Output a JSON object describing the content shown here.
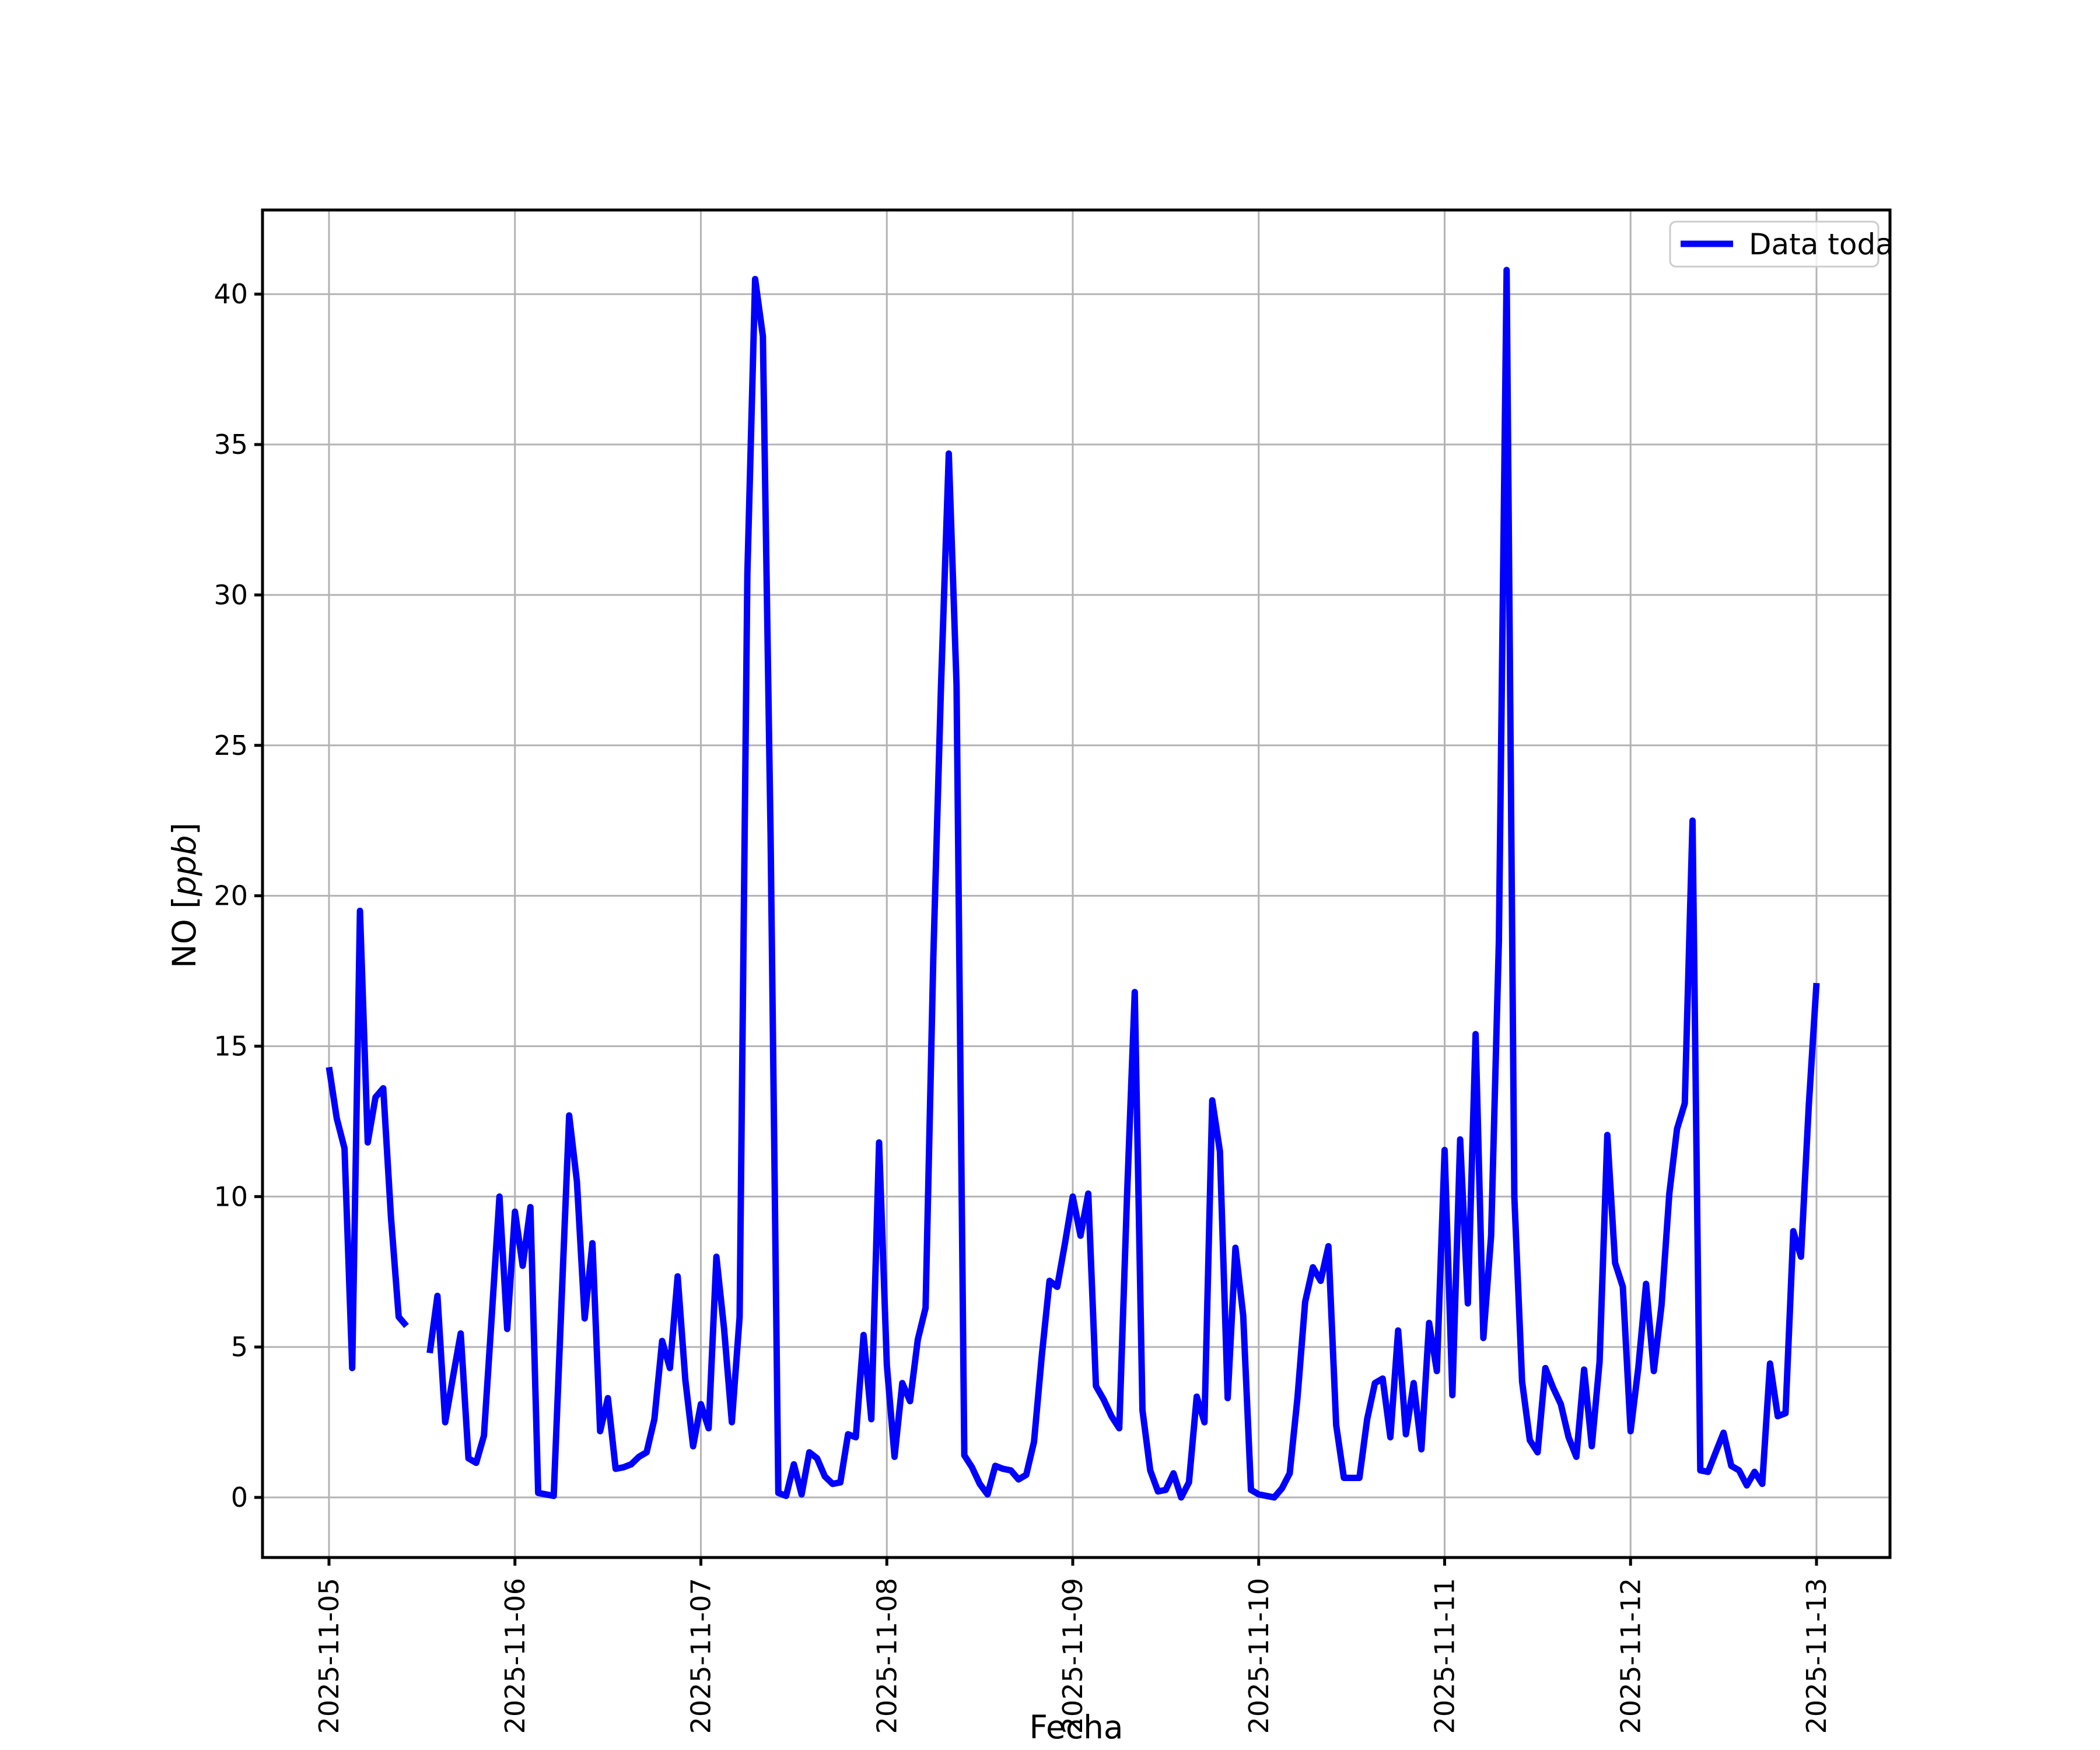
{
  "chart_data": {
    "type": "line",
    "title": "",
    "xlabel": "Fecha",
    "ylabel": "NO [ppb]",
    "ylabel_parts": {
      "prefix": "NO [",
      "italic": "ppb",
      "suffix": "]"
    },
    "legend": {
      "label": "Data toda",
      "position": "upper right"
    },
    "line_color": "#0000ff",
    "grid": true,
    "grid_color": "#b3b3b3",
    "background_color": "#ffffff",
    "y_ticks": [
      0,
      5,
      10,
      15,
      20,
      25,
      30,
      35,
      40
    ],
    "x_ticks": [
      "2025-11-05",
      "2025-11-06",
      "2025-11-07",
      "2025-11-08",
      "2025-11-09",
      "2025-11-10",
      "2025-11-11",
      "2025-11-12",
      "2025-11-13"
    ],
    "ylim": [
      -2.04,
      42.84
    ],
    "series_name": "Data toda",
    "start": "2025-11-05T00:00",
    "step_hours": 1,
    "values": [
      14.3,
      12.6,
      11.6,
      4.3,
      19.5,
      11.8,
      13.3,
      13.6,
      9.3,
      6.0,
      5.7,
      null,
      null,
      4.8,
      6.7,
      2.5,
      4.0,
      5.45,
      1.3,
      1.15,
      2.05,
      6.0,
      10.0,
      5.6,
      9.5,
      7.7,
      9.65,
      0.15,
      0.1,
      0.05,
      6.4,
      12.7,
      10.5,
      5.95,
      8.45,
      2.2,
      3.3,
      0.95,
      1.0,
      1.1,
      1.35,
      1.5,
      2.6,
      5.2,
      4.3,
      7.35,
      3.9,
      1.7,
      3.1,
      2.3,
      8.0,
      5.6,
      2.5,
      6.0,
      30.7,
      40.5,
      38.6,
      22.0,
      0.15,
      0.05,
      1.1,
      0.1,
      1.5,
      1.3,
      0.7,
      0.45,
      0.5,
      2.1,
      2.0,
      5.4,
      2.6,
      11.8,
      4.4,
      1.35,
      3.8,
      3.2,
      5.25,
      6.3,
      17.9,
      27.0,
      34.7,
      27.0,
      1.4,
      1.0,
      0.45,
      0.1,
      1.05,
      0.95,
      0.9,
      0.6,
      0.75,
      1.85,
      4.7,
      7.2,
      7.0,
      8.45,
      10.0,
      8.7,
      10.1,
      3.7,
      3.25,
      2.7,
      2.3,
      10.0,
      16.8,
      2.9,
      0.9,
      0.2,
      0.25,
      0.8,
      0.0,
      0.5,
      3.35,
      2.5,
      13.2,
      11.5,
      3.3,
      8.3,
      6.05,
      0.25,
      0.1,
      0.05,
      0.0,
      0.3,
      0.8,
      3.3,
      6.5,
      7.65,
      7.2,
      8.35,
      2.4,
      0.65,
      0.65,
      0.65,
      2.6,
      3.8,
      3.95,
      2.0,
      5.55,
      2.1,
      3.8,
      1.6,
      5.8,
      4.2,
      11.55,
      3.4,
      11.9,
      6.45,
      15.4,
      5.3,
      8.7,
      18.5,
      40.8,
      10.0,
      3.85,
      1.9,
      1.5,
      4.3,
      3.65,
      3.1,
      2.0,
      1.35,
      4.25,
      1.7,
      4.5,
      12.05,
      7.8,
      7.0,
      2.2,
      4.3,
      7.1,
      4.2,
      6.4,
      10.1,
      12.25,
      13.1,
      22.5,
      0.9,
      0.85,
      1.5,
      2.15,
      1.05,
      0.9,
      0.4,
      0.85,
      0.45,
      4.45,
      2.7,
      2.8,
      8.85,
      8.0,
      13.0,
      17.1
    ]
  }
}
